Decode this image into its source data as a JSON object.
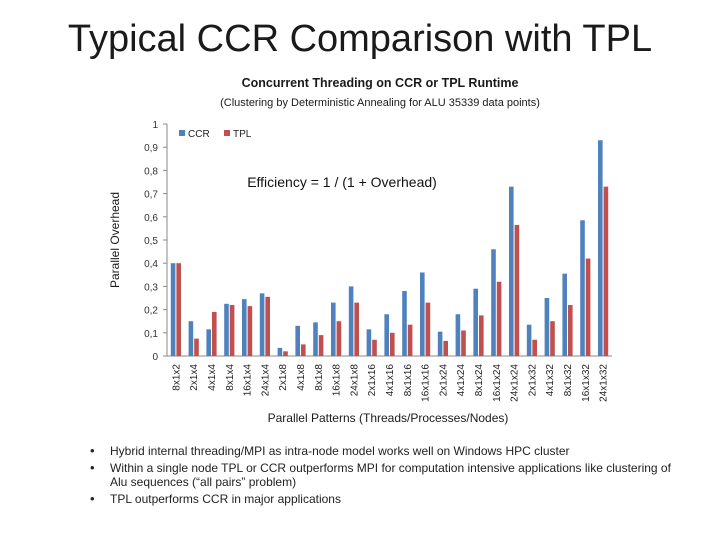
{
  "slide": {
    "title": "Typical CCR Comparison with TPL",
    "bullets": [
      "Hybrid internal threading/MPI as intra-node model works well on Windows HPC cluster",
      "Within a single node TPL or CCR outperforms MPI for computation intensive applications like clustering of Alu sequences (“all pairs” problem)",
      "TPL outperforms CCR in major applications"
    ]
  },
  "chart_data": {
    "type": "bar",
    "title": "Concurrent Threading on CCR or TPL Runtime",
    "subtitle": "(Clustering by Deterministic Annealing for ALU 35339 data points)",
    "annotation": "Efficiency = 1  / (1 + Overhead)",
    "xlabel": "Parallel Patterns (Threads/Processes/Nodes)",
    "ylabel": "Parallel Overhead",
    "ylim": [
      0,
      1
    ],
    "yticks": [
      "0",
      "0,1",
      "0,2",
      "0,3",
      "0,4",
      "0,5",
      "0,6",
      "0,7",
      "0,8",
      "0,9",
      "1"
    ],
    "grid": false,
    "legend_position": "top-left",
    "categories": [
      "8x1x2",
      "2x1x4",
      "4x1x4",
      "8x1x4",
      "16x1x4",
      "24x1x4",
      "2x1x8",
      "4x1x8",
      "8x1x8",
      "16x1x8",
      "24x1x8",
      "2x1x16",
      "4x1x16",
      "8x1x16",
      "16x1x16",
      "2x1x24",
      "4x1x24",
      "8x1x24",
      "16x1x24",
      "24x1x24",
      "2x1x32",
      "4x1x32",
      "8x1x32",
      "16x1x32",
      "24x1x32"
    ],
    "series": [
      {
        "name": "CCR",
        "color": "#4f81bd",
        "values": [
          0.4,
          0.15,
          0.115,
          0.225,
          0.245,
          0.27,
          0.035,
          0.13,
          0.145,
          0.23,
          0.3,
          0.115,
          0.18,
          0.28,
          0.36,
          0.105,
          0.18,
          0.29,
          0.46,
          0.73,
          0.135,
          0.25,
          0.355,
          0.585,
          0.93
        ]
      },
      {
        "name": "TPL",
        "color": "#c0504d",
        "values": [
          0.4,
          0.075,
          0.19,
          0.22,
          0.215,
          0.255,
          0.02,
          0.05,
          0.09,
          0.15,
          0.23,
          0.07,
          0.1,
          0.135,
          0.23,
          0.065,
          0.11,
          0.175,
          0.32,
          0.565,
          0.07,
          0.15,
          0.22,
          0.42,
          0.73
        ]
      }
    ]
  }
}
